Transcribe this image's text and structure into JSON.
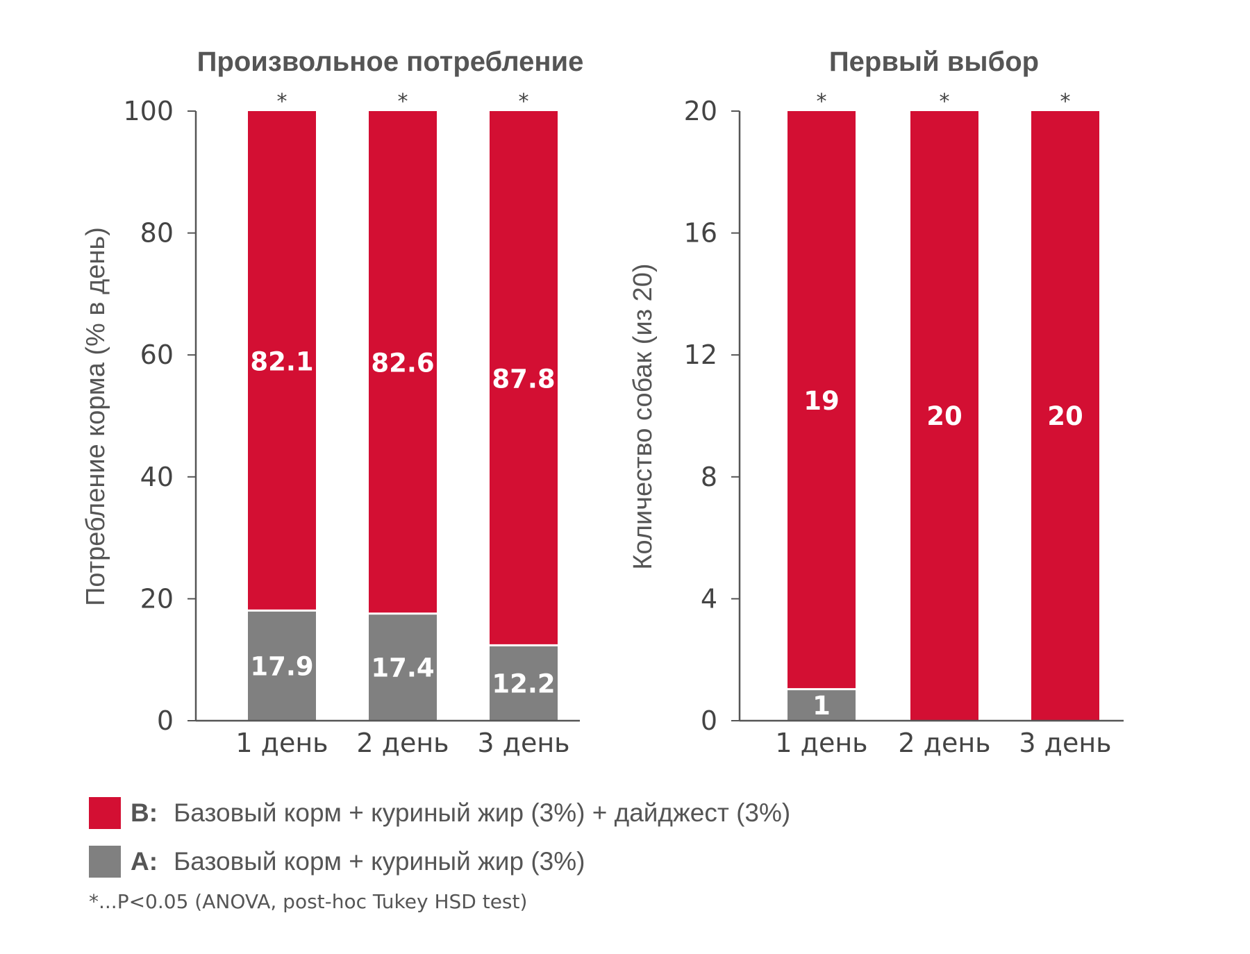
{
  "colors": {
    "B": "#d30f33",
    "A": "#808080",
    "axis": "#555555"
  },
  "legend": [
    {
      "key": "B:",
      "label": "Базовый корм + куриный жир (3%) + дайджест (3%)",
      "color": "#d30f33"
    },
    {
      "key": "A:",
      "label": "Базовый корм + куриный жир (3%)",
      "color": "#808080"
    }
  ],
  "footnote": "*...P<0.05 (ANOVA, post-hoc Tukey HSD test)",
  "chart_data": [
    {
      "type": "bar",
      "stacked": true,
      "title": "Произвольное потребление",
      "xlabel": "",
      "ylabel": "Потребление корма (% в день)",
      "ylim": [
        0,
        100
      ],
      "yticks": [
        "0",
        "20",
        "40",
        "60",
        "80",
        "100"
      ],
      "categories": [
        "1 день",
        "2 день",
        "3 день"
      ],
      "series": [
        {
          "key": "A",
          "values": [
            17.9,
            17.4,
            12.2
          ],
          "labels": [
            "17.9",
            "17.4",
            "12.2"
          ]
        },
        {
          "key": "B",
          "values": [
            82.1,
            82.6,
            87.8
          ],
          "labels": [
            "82.1",
            "82.6",
            "87.8"
          ]
        }
      ],
      "annotations": [
        "*",
        "*",
        "*"
      ]
    },
    {
      "type": "bar",
      "stacked": true,
      "title": "Первый выбор",
      "xlabel": "",
      "ylabel": "Количество собак (из 20)",
      "ylim": [
        0,
        20
      ],
      "yticks": [
        "0",
        "4",
        "8",
        "12",
        "16",
        "20"
      ],
      "categories": [
        "1 день",
        "2 день",
        "3 день"
      ],
      "series": [
        {
          "key": "A",
          "values": [
            1,
            0,
            0
          ],
          "labels": [
            "1",
            "",
            ""
          ]
        },
        {
          "key": "B",
          "values": [
            19,
            20,
            20
          ],
          "labels": [
            "19",
            "20",
            "20"
          ]
        }
      ],
      "annotations": [
        "*",
        "*",
        "*"
      ]
    }
  ]
}
